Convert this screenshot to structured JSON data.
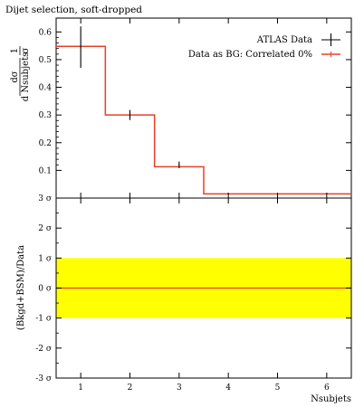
{
  "chart_data": [
    {
      "type": "line",
      "panel": "main",
      "title": "Dijet selection, soft-dropped",
      "xlabel": "Nsubjets",
      "ylabel": "1/σ dσ/d Nsubjets",
      "ylabel_parts": {
        "one": "1",
        "sigma": "σ",
        "dsigma": "dσ",
        "d_nsubjets": "d Nsubjets"
      },
      "xlim": [
        0.5,
        6.5
      ],
      "ylim": [
        0,
        0.65
      ],
      "x_ticks": [
        1,
        2,
        3,
        4,
        5,
        6
      ],
      "y_ticks": [
        0.1,
        0.2,
        0.3,
        0.4,
        0.5,
        0.6
      ],
      "y_tick_labels": [
        "0.1",
        "0.2",
        "0.3",
        "0.4",
        "0.5",
        "0.6"
      ],
      "legend_position": "top-right",
      "series": [
        {
          "name": "ATLAS Data",
          "color": "#000000",
          "style": "points-with-error-bars",
          "x": [
            1,
            2,
            3,
            4,
            5,
            6
          ],
          "y": [
            0.545,
            0.3,
            0.12,
            0.015,
            0.015,
            0.015
          ],
          "yerr": [
            0.075,
            0.018,
            0.012,
            0.002,
            0.002,
            0.002
          ]
        },
        {
          "name": "Data as BG: Correlated 0%",
          "color": "#e8402a",
          "style": "histogram-step",
          "bin_edges": [
            0.5,
            1.5,
            2.5,
            3.5,
            4.5,
            5.5,
            6.5
          ],
          "values": [
            0.548,
            0.3,
            0.113,
            0.015,
            0.015,
            0.015
          ]
        }
      ]
    },
    {
      "type": "line",
      "panel": "ratio",
      "xlabel": "Nsubjets",
      "ylabel": "(Bkgd+BSM)/Data",
      "xlim": [
        0.5,
        6.5
      ],
      "ylim": [
        -3,
        3
      ],
      "x_ticks": [
        1,
        2,
        3,
        4,
        5,
        6
      ],
      "x_tick_labels": [
        "1",
        "2",
        "3",
        "4",
        "5",
        "6"
      ],
      "y_ticks": [
        3,
        2,
        1,
        0,
        -1,
        -2,
        -3
      ],
      "y_tick_labels": [
        "3 σ",
        "2 σ",
        "1 σ",
        "0 σ",
        "-1 σ",
        "-2 σ",
        "-3 σ"
      ],
      "band": {
        "low": -1,
        "high": 1,
        "color": "#ffff00"
      },
      "series": [
        {
          "name": "",
          "color": "#e8402a",
          "x": [
            0.5,
            6.5
          ],
          "y": [
            0,
            0
          ]
        }
      ]
    }
  ]
}
